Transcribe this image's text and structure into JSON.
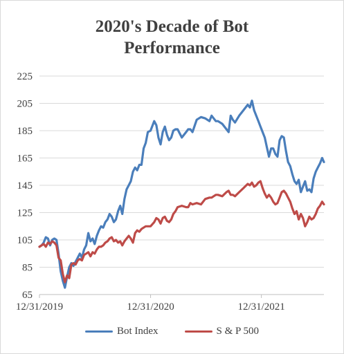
{
  "chart_data": {
    "type": "line",
    "title_lines": [
      "2020's Decade of Bot",
      "Performance"
    ],
    "xlabel": "",
    "ylabel": "",
    "ylim": [
      65,
      225
    ],
    "yticks": [
      65,
      85,
      105,
      125,
      145,
      165,
      185,
      205,
      225
    ],
    "xlim": [
      "2019-12-31",
      "2022-07-25"
    ],
    "xticks": [
      "12/31/2019",
      "12/31/2020",
      "12/31/2021"
    ],
    "grid": "horizontal",
    "legend_position": "bottom",
    "series": [
      {
        "name": "Bot Index",
        "color": "#4a7ebb",
        "x": [
          "2019-12-31",
          "2020-01-07",
          "2020-01-14",
          "2020-01-21",
          "2020-01-28",
          "2020-02-04",
          "2020-02-11",
          "2020-02-18",
          "2020-02-25",
          "2020-03-03",
          "2020-03-10",
          "2020-03-17",
          "2020-03-24",
          "2020-03-31",
          "2020-04-07",
          "2020-04-14",
          "2020-04-21",
          "2020-04-28",
          "2020-05-05",
          "2020-05-12",
          "2020-05-19",
          "2020-05-26",
          "2020-06-02",
          "2020-06-09",
          "2020-06-16",
          "2020-06-23",
          "2020-06-30",
          "2020-07-07",
          "2020-07-14",
          "2020-07-21",
          "2020-07-28",
          "2020-08-04",
          "2020-08-11",
          "2020-08-18",
          "2020-08-25",
          "2020-09-01",
          "2020-09-08",
          "2020-09-15",
          "2020-09-22",
          "2020-09-29",
          "2020-10-06",
          "2020-10-13",
          "2020-10-20",
          "2020-10-27",
          "2020-11-03",
          "2020-11-10",
          "2020-11-17",
          "2020-11-24",
          "2020-12-01",
          "2020-12-08",
          "2020-12-15",
          "2020-12-22",
          "2020-12-31",
          "2021-01-12",
          "2021-01-19",
          "2021-01-26",
          "2021-02-02",
          "2021-02-09",
          "2021-02-16",
          "2021-02-23",
          "2021-03-02",
          "2021-03-09",
          "2021-03-16",
          "2021-03-23",
          "2021-03-30",
          "2021-04-13",
          "2021-04-27",
          "2021-05-04",
          "2021-05-11",
          "2021-05-18",
          "2021-06-01",
          "2021-06-15",
          "2021-06-29",
          "2021-07-13",
          "2021-07-20",
          "2021-08-03",
          "2021-08-10",
          "2021-08-24",
          "2021-09-07",
          "2021-09-14",
          "2021-09-21",
          "2021-09-28",
          "2021-10-05",
          "2021-10-19",
          "2021-11-02",
          "2021-11-16",
          "2021-11-23",
          "2021-11-30",
          "2021-12-07",
          "2021-12-14",
          "2021-12-21",
          "2021-12-28",
          "2022-01-04",
          "2022-01-11",
          "2022-01-18",
          "2022-01-25",
          "2022-02-01",
          "2022-02-08",
          "2022-02-15",
          "2022-02-22",
          "2022-03-01",
          "2022-03-08",
          "2022-03-15",
          "2022-03-22",
          "2022-03-29",
          "2022-04-05",
          "2022-04-12",
          "2022-04-19",
          "2022-04-26",
          "2022-05-03",
          "2022-05-10",
          "2022-05-17",
          "2022-05-24",
          "2022-05-31",
          "2022-06-07",
          "2022-06-14",
          "2022-06-21",
          "2022-06-28",
          "2022-07-05",
          "2022-07-12",
          "2022-07-19",
          "2022-07-25"
        ],
        "y": [
          100,
          101,
          103,
          107,
          106,
          101,
          105,
          106,
          105,
          95,
          82,
          75,
          70,
          78,
          85,
          88,
          86,
          89,
          92,
          95,
          92,
          98,
          101,
          110,
          104,
          106,
          102,
          108,
          112,
          115,
          114,
          118,
          120,
          124,
          122,
          118,
          120,
          126,
          130,
          124,
          135,
          142,
          145,
          148,
          155,
          158,
          156,
          160,
          160,
          172,
          176,
          184,
          185,
          192,
          189,
          180,
          175,
          184,
          188,
          182,
          178,
          180,
          185,
          186,
          186,
          180,
          184,
          186,
          186,
          184,
          193,
          195,
          194,
          192,
          196,
          192,
          192,
          190,
          186,
          184,
          196,
          193,
          191,
          196,
          200,
          204,
          202,
          207,
          200,
          196,
          192,
          188,
          184,
          180,
          173,
          166,
          172,
          172,
          168,
          166,
          178,
          181,
          180,
          170,
          162,
          159,
          153,
          148,
          146,
          149,
          140,
          144,
          148,
          141,
          142,
          140,
          150,
          155,
          158,
          161,
          165,
          162
        ]
      },
      {
        "name": "S & P 500",
        "color": "#be4b48",
        "x": [
          "2019-12-31",
          "2020-01-07",
          "2020-01-14",
          "2020-01-21",
          "2020-01-28",
          "2020-02-04",
          "2020-02-11",
          "2020-02-18",
          "2020-02-25",
          "2020-03-03",
          "2020-03-10",
          "2020-03-17",
          "2020-03-24",
          "2020-03-31",
          "2020-04-07",
          "2020-04-14",
          "2020-04-21",
          "2020-04-28",
          "2020-05-05",
          "2020-05-12",
          "2020-05-19",
          "2020-05-26",
          "2020-06-02",
          "2020-06-09",
          "2020-06-16",
          "2020-06-23",
          "2020-06-30",
          "2020-07-07",
          "2020-07-14",
          "2020-07-21",
          "2020-07-28",
          "2020-08-04",
          "2020-08-11",
          "2020-08-18",
          "2020-08-25",
          "2020-09-01",
          "2020-09-08",
          "2020-09-15",
          "2020-09-22",
          "2020-09-29",
          "2020-10-06",
          "2020-10-13",
          "2020-10-20",
          "2020-10-27",
          "2020-11-03",
          "2020-11-10",
          "2020-11-17",
          "2020-11-24",
          "2020-12-01",
          "2020-12-08",
          "2020-12-15",
          "2020-12-22",
          "2020-12-31",
          "2021-01-12",
          "2021-01-19",
          "2021-01-26",
          "2021-02-02",
          "2021-02-09",
          "2021-02-16",
          "2021-02-23",
          "2021-03-02",
          "2021-03-09",
          "2021-03-16",
          "2021-03-23",
          "2021-03-30",
          "2021-04-13",
          "2021-04-27",
          "2021-05-04",
          "2021-05-11",
          "2021-05-18",
          "2021-06-01",
          "2021-06-15",
          "2021-06-29",
          "2021-07-13",
          "2021-07-20",
          "2021-08-03",
          "2021-08-10",
          "2021-08-24",
          "2021-09-07",
          "2021-09-14",
          "2021-09-21",
          "2021-09-28",
          "2021-10-05",
          "2021-10-19",
          "2021-11-02",
          "2021-11-16",
          "2021-11-23",
          "2021-11-30",
          "2021-12-07",
          "2021-12-14",
          "2021-12-21",
          "2021-12-28",
          "2022-01-04",
          "2022-01-11",
          "2022-01-18",
          "2022-01-25",
          "2022-02-01",
          "2022-02-08",
          "2022-02-15",
          "2022-02-22",
          "2022-03-01",
          "2022-03-08",
          "2022-03-15",
          "2022-03-22",
          "2022-03-29",
          "2022-04-05",
          "2022-04-12",
          "2022-04-19",
          "2022-04-26",
          "2022-05-03",
          "2022-05-10",
          "2022-05-17",
          "2022-05-24",
          "2022-05-31",
          "2022-06-07",
          "2022-06-14",
          "2022-06-21",
          "2022-06-28",
          "2022-07-05",
          "2022-07-12",
          "2022-07-19",
          "2022-07-25"
        ],
        "y": [
          100,
          101,
          102,
          100,
          103,
          102,
          104,
          103,
          101,
          92,
          90,
          80,
          74,
          79,
          77,
          87,
          88,
          87,
          90,
          91,
          90,
          94,
          95,
          96,
          93,
          96,
          95,
          98,
          100,
          100,
          101,
          103,
          104,
          106,
          107,
          104,
          105,
          103,
          104,
          101,
          104,
          106,
          108,
          106,
          103,
          110,
          112,
          111,
          113,
          114,
          115,
          115,
          115,
          118,
          121,
          120,
          117,
          121,
          122,
          119,
          118,
          120,
          124,
          126,
          129,
          130,
          129,
          129,
          132,
          131,
          132,
          131,
          135,
          136,
          136,
          138,
          138,
          137,
          140,
          141,
          138,
          138,
          137,
          140,
          143,
          146,
          145,
          147,
          144,
          145,
          147,
          148,
          143,
          139,
          136,
          138,
          136,
          133,
          131,
          132,
          136,
          140,
          141,
          139,
          136,
          133,
          128,
          124,
          126,
          120,
          124,
          121,
          115,
          118,
          122,
          120,
          121,
          124,
          128,
          130,
          133,
          131
        ]
      }
    ]
  }
}
